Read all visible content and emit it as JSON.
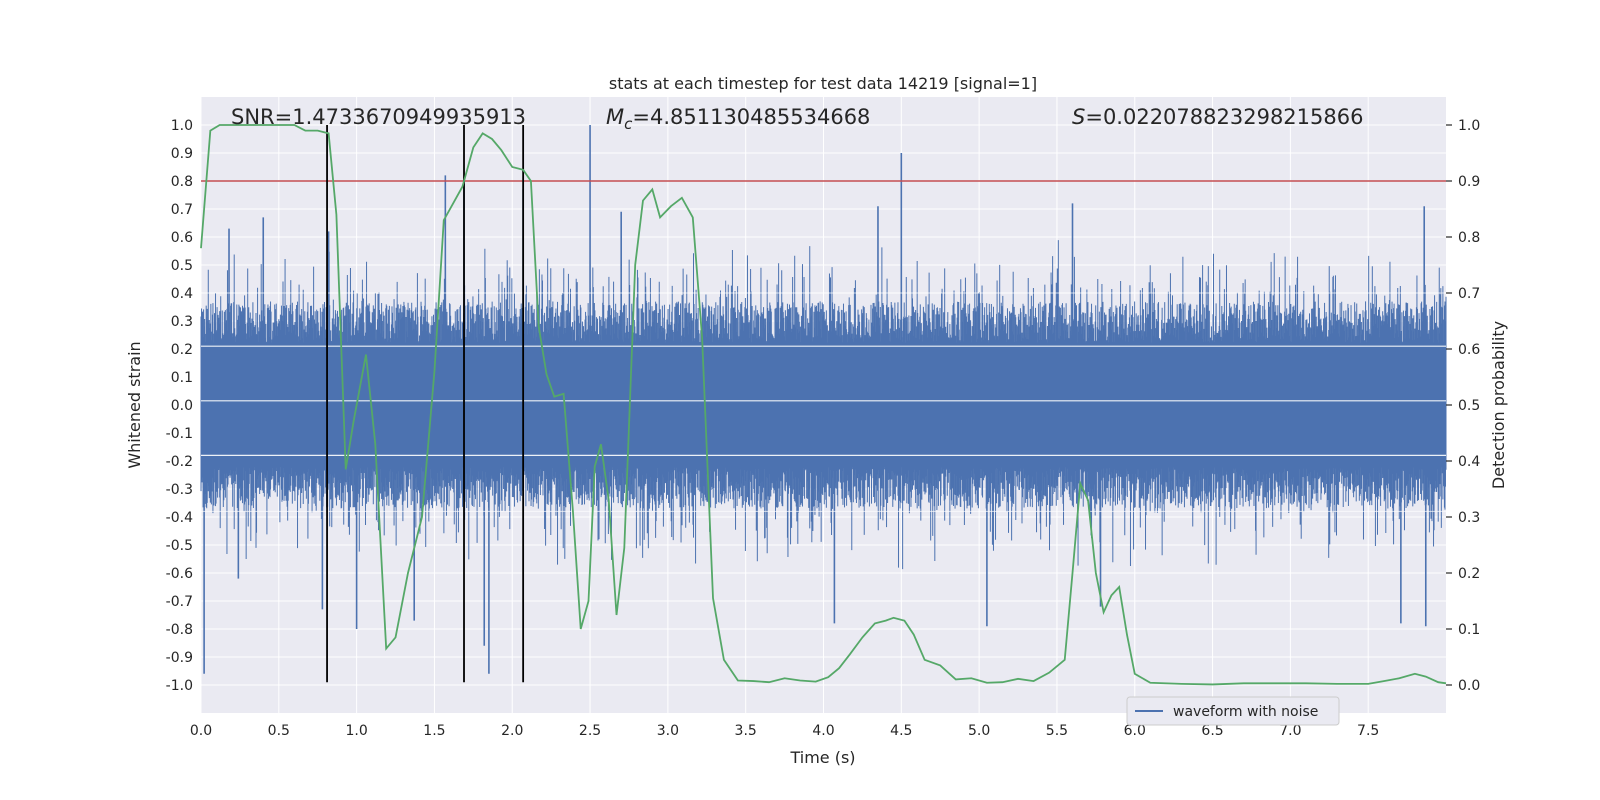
{
  "chart_data": {
    "type": "line",
    "title": "stats at each timestep for test data 14219 [signal=1]",
    "xlabel": "Time (s)",
    "ylabel": "Whitened strain",
    "ylabel_right": "Detection probability",
    "xlim": [
      0,
      8
    ],
    "ylim": [
      -1.1,
      1.1
    ],
    "ylim_right": [
      -0.05,
      1.05
    ],
    "x_ticks": [
      0.0,
      0.5,
      1.0,
      1.5,
      2.0,
      2.5,
      3.0,
      3.5,
      4.0,
      4.5,
      5.0,
      5.5,
      6.0,
      6.5,
      7.0,
      7.5
    ],
    "x_tick_labels": [
      "0.0",
      "0.5",
      "1.0",
      "1.5",
      "2.0",
      "2.5",
      "3.0",
      "3.5",
      "4.0",
      "4.5",
      "5.0",
      "5.5",
      "6.0",
      "6.5",
      "7.0",
      "7.5"
    ],
    "y_ticks": [
      1.0,
      0.9,
      0.8,
      0.7,
      0.6,
      0.5,
      0.4,
      0.3,
      0.2,
      0.1,
      0.0,
      -0.1,
      -0.2,
      -0.3,
      -0.4,
      -0.5,
      -0.6,
      -0.7,
      -0.8,
      -0.9,
      -1.0
    ],
    "y_tick_labels": [
      "1.0",
      "0.9",
      "0.8",
      "0.7",
      "0.6",
      "0.5",
      "0.4",
      "0.3",
      "0.2",
      "0.1",
      "0.0",
      "-0.1",
      "-0.2",
      "-0.3",
      "-0.4",
      "-0.5",
      "-0.6",
      "-0.7",
      "-0.8",
      "-0.9",
      "-1.0"
    ],
    "y_right_ticks": [
      1.0,
      0.9,
      0.8,
      0.7,
      0.6,
      0.5,
      0.4,
      0.3,
      0.2,
      0.1,
      0.0
    ],
    "y_right_tick_labels": [
      "1.0",
      "0.9",
      "0.8",
      "0.7",
      "0.6",
      "0.5",
      "0.4",
      "0.3",
      "0.2",
      "0.1",
      "0.0"
    ],
    "grid": true,
    "annotations": {
      "snr": "SNR=1.4733670949935913",
      "mc_symbol": "M",
      "mc_sub": "c",
      "mc_value": "=4.851130485534668",
      "s_symbol": "S",
      "s_value": "=0.022078823298215866"
    },
    "legend": {
      "position": "lower-center",
      "entries": [
        {
          "label": "waveform with noise",
          "color": "#4c72b0"
        }
      ]
    },
    "threshold_strain": 0.8,
    "vertical_markers_s": [
      0.81,
      1.69,
      2.07
    ],
    "vertical_markers_range": [
      -0.99,
      1.0
    ],
    "waveform": {
      "name": "waveform with noise",
      "color": "#4c72b0",
      "sample_count": 2400,
      "band_half_width_strain": 0.37,
      "notable_peaks": [
        {
          "t": 0.18,
          "v": 0.63
        },
        {
          "t": 0.4,
          "v": 0.67
        },
        {
          "t": 0.82,
          "v": 0.62
        },
        {
          "t": 1.57,
          "v": 0.82
        },
        {
          "t": 1.69,
          "v": 0.8
        },
        {
          "t": 2.07,
          "v": 0.77
        },
        {
          "t": 2.5,
          "v": 1.0
        },
        {
          "t": 2.7,
          "v": 0.69
        },
        {
          "t": 4.5,
          "v": 0.9
        },
        {
          "t": 4.35,
          "v": 0.71
        },
        {
          "t": 5.6,
          "v": 0.72
        },
        {
          "t": 7.86,
          "v": 0.71
        }
      ],
      "notable_troughs": [
        {
          "t": 0.02,
          "v": -0.96
        },
        {
          "t": 0.24,
          "v": -0.62
        },
        {
          "t": 0.78,
          "v": -0.73
        },
        {
          "t": 1.0,
          "v": -0.8
        },
        {
          "t": 1.37,
          "v": -0.77
        },
        {
          "t": 1.85,
          "v": -0.96
        },
        {
          "t": 1.82,
          "v": -0.86
        },
        {
          "t": 4.07,
          "v": -0.78
        },
        {
          "t": 5.05,
          "v": -0.79
        },
        {
          "t": 5.78,
          "v": -0.72
        },
        {
          "t": 7.71,
          "v": -0.78
        },
        {
          "t": 7.87,
          "v": -0.79
        }
      ]
    },
    "detection_probability": {
      "name": "detection probability",
      "color": "#55a868",
      "points": [
        [
          0.0,
          0.78
        ],
        [
          0.06,
          0.99
        ],
        [
          0.12,
          1.0
        ],
        [
          0.3,
          1.0
        ],
        [
          0.6,
          1.0
        ],
        [
          0.67,
          0.99
        ],
        [
          0.75,
          0.99
        ],
        [
          0.82,
          0.985
        ],
        [
          0.87,
          0.84
        ],
        [
          0.93,
          0.385
        ],
        [
          0.98,
          0.47
        ],
        [
          1.06,
          0.59
        ],
        [
          1.12,
          0.43
        ],
        [
          1.19,
          0.065
        ],
        [
          1.25,
          0.085
        ],
        [
          1.33,
          0.2
        ],
        [
          1.42,
          0.3
        ],
        [
          1.5,
          0.56
        ],
        [
          1.56,
          0.83
        ],
        [
          1.62,
          0.86
        ],
        [
          1.68,
          0.89
        ],
        [
          1.75,
          0.96
        ],
        [
          1.81,
          0.985
        ],
        [
          1.87,
          0.975
        ],
        [
          1.93,
          0.955
        ],
        [
          2.0,
          0.925
        ],
        [
          2.07,
          0.92
        ],
        [
          2.12,
          0.9
        ],
        [
          2.17,
          0.64
        ],
        [
          2.22,
          0.555
        ],
        [
          2.27,
          0.515
        ],
        [
          2.33,
          0.52
        ],
        [
          2.39,
          0.31
        ],
        [
          2.44,
          0.1
        ],
        [
          2.49,
          0.15
        ],
        [
          2.53,
          0.39
        ],
        [
          2.57,
          0.43
        ],
        [
          2.62,
          0.33
        ],
        [
          2.67,
          0.125
        ],
        [
          2.72,
          0.245
        ],
        [
          2.79,
          0.75
        ],
        [
          2.84,
          0.865
        ],
        [
          2.9,
          0.885
        ],
        [
          2.95,
          0.835
        ],
        [
          3.02,
          0.855
        ],
        [
          3.09,
          0.87
        ],
        [
          3.16,
          0.835
        ],
        [
          3.22,
          0.62
        ],
        [
          3.29,
          0.155
        ],
        [
          3.36,
          0.045
        ],
        [
          3.45,
          0.008
        ],
        [
          3.55,
          0.007
        ],
        [
          3.65,
          0.005
        ],
        [
          3.75,
          0.012
        ],
        [
          3.85,
          0.008
        ],
        [
          3.95,
          0.006
        ],
        [
          4.03,
          0.014
        ],
        [
          4.1,
          0.03
        ],
        [
          4.17,
          0.055
        ],
        [
          4.25,
          0.085
        ],
        [
          4.33,
          0.11
        ],
        [
          4.4,
          0.115
        ],
        [
          4.45,
          0.12
        ],
        [
          4.52,
          0.115
        ],
        [
          4.58,
          0.09
        ],
        [
          4.65,
          0.045
        ],
        [
          4.75,
          0.035
        ],
        [
          4.85,
          0.01
        ],
        [
          4.95,
          0.012
        ],
        [
          5.05,
          0.004
        ],
        [
          5.15,
          0.005
        ],
        [
          5.25,
          0.011
        ],
        [
          5.35,
          0.007
        ],
        [
          5.45,
          0.022
        ],
        [
          5.55,
          0.045
        ],
        [
          5.6,
          0.2
        ],
        [
          5.65,
          0.36
        ],
        [
          5.7,
          0.33
        ],
        [
          5.75,
          0.2
        ],
        [
          5.8,
          0.13
        ],
        [
          5.85,
          0.16
        ],
        [
          5.9,
          0.175
        ],
        [
          5.95,
          0.09
        ],
        [
          6.0,
          0.02
        ],
        [
          6.1,
          0.004
        ],
        [
          6.3,
          0.002
        ],
        [
          6.5,
          0.001
        ],
        [
          6.7,
          0.003
        ],
        [
          6.9,
          0.003
        ],
        [
          7.1,
          0.003
        ],
        [
          7.3,
          0.002
        ],
        [
          7.5,
          0.002
        ],
        [
          7.6,
          0.007
        ],
        [
          7.7,
          0.012
        ],
        [
          7.8,
          0.02
        ],
        [
          7.87,
          0.015
        ],
        [
          7.95,
          0.005
        ],
        [
          8.0,
          0.003
        ]
      ]
    }
  }
}
